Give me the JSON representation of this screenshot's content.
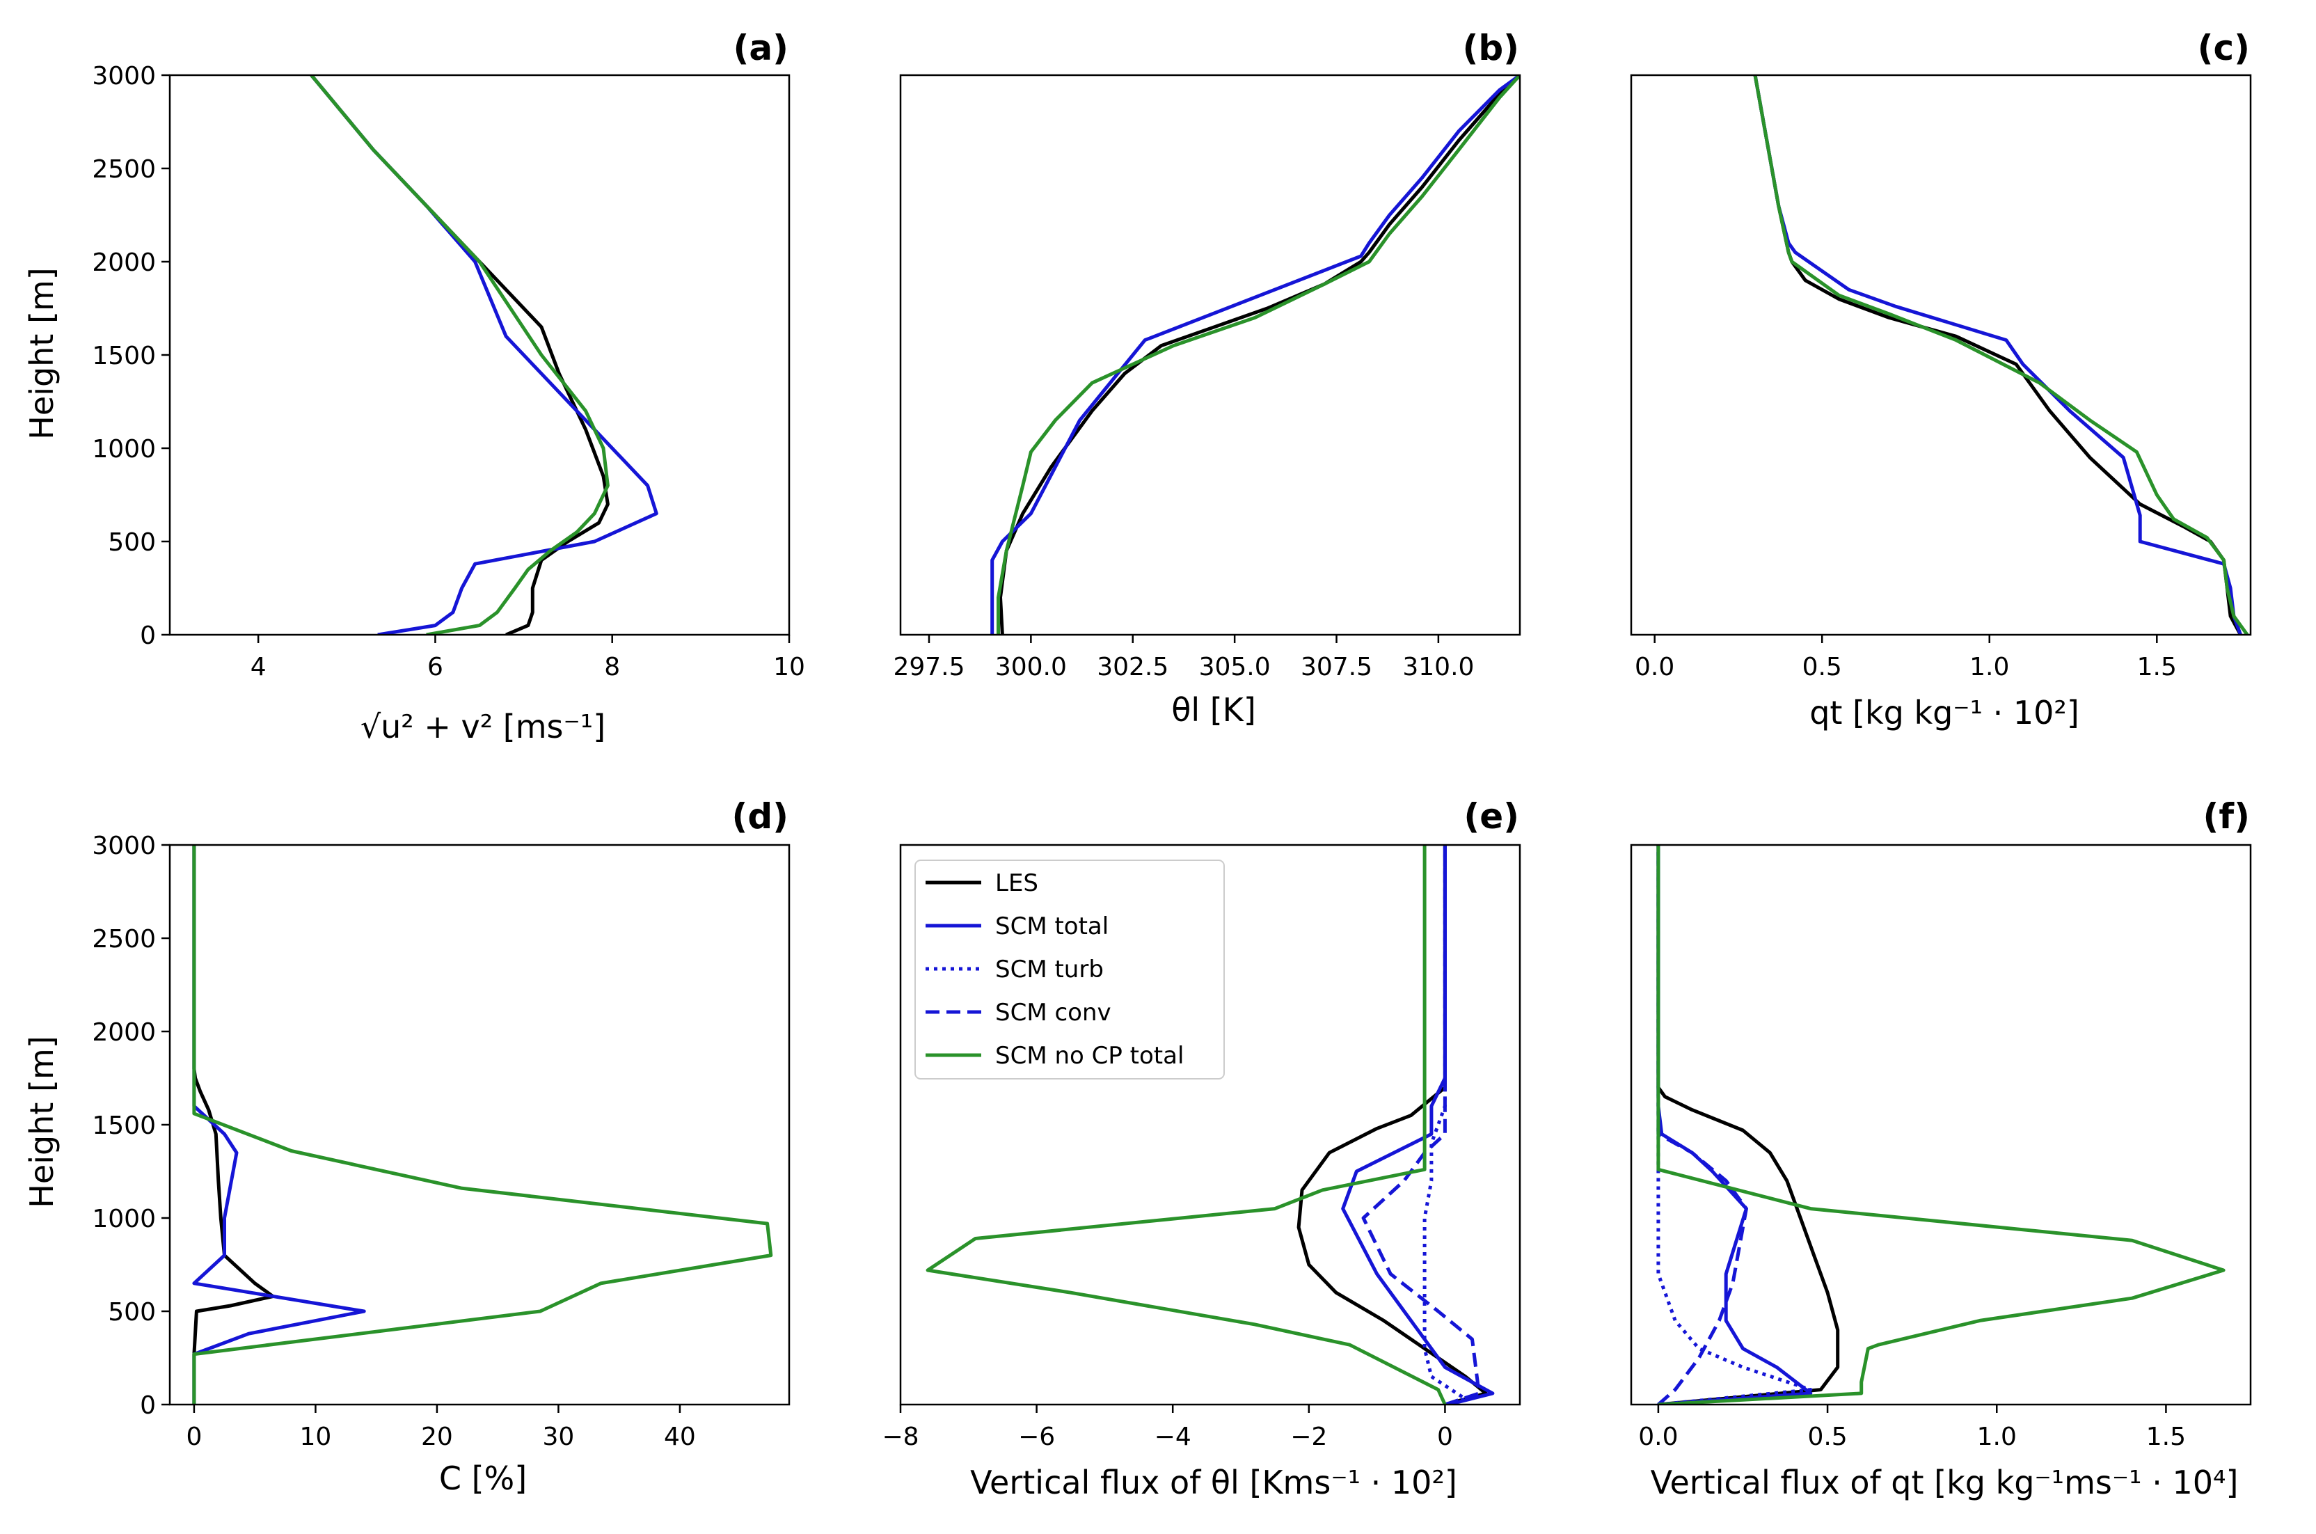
{
  "colors": {
    "LES": "#000000",
    "SCM total": "#1515d6",
    "SCM turb": "#1515d6",
    "SCM conv": "#1515d6",
    "SCM no CP total": "#2a922a"
  },
  "legend": [
    {
      "label": "LES",
      "dash": "solid"
    },
    {
      "label": "SCM total",
      "dash": "solid"
    },
    {
      "label": "SCM turb",
      "dash": "dotted"
    },
    {
      "label": "SCM conv",
      "dash": "dashed"
    },
    {
      "label": "SCM no CP total",
      "dash": "solid"
    }
  ],
  "chart_data": [
    {
      "type": "line",
      "panel": "(a)",
      "xlabel": "√u² + v² [ms⁻¹]",
      "ylabel": "Height [m]",
      "xlim": [
        3,
        10
      ],
      "ylim": [
        0,
        3000
      ],
      "xticks": [
        4,
        6,
        8,
        10
      ],
      "xtick_labels": [
        "4",
        "6",
        "8",
        "10"
      ],
      "yticks": [
        0,
        500,
        1000,
        1500,
        2000,
        2500,
        3000
      ],
      "ytick_labels": [
        "0",
        "500",
        "1000",
        "1500",
        "2000",
        "2500",
        "3000"
      ],
      "series": [
        {
          "name": "LES",
          "x": [
            6.8,
            7.05,
            7.1,
            7.1,
            7.2,
            7.5,
            7.85,
            7.95,
            7.9,
            7.7,
            7.4,
            7.2,
            6.9,
            6.5,
            5.9,
            5.3,
            4.6
          ],
          "y": [
            0,
            50,
            120,
            250,
            400,
            500,
            600,
            700,
            850,
            1100,
            1400,
            1650,
            1800,
            2000,
            2300,
            2600,
            3000
          ]
        },
        {
          "name": "SCM total",
          "x": [
            5.35,
            6.0,
            6.2,
            6.3,
            6.45,
            7.8,
            8.5,
            8.4,
            8.0,
            7.7,
            7.2,
            6.8,
            6.45,
            5.9,
            5.3,
            4.6
          ],
          "y": [
            0,
            50,
            120,
            250,
            380,
            500,
            650,
            800,
            1000,
            1150,
            1400,
            1600,
            2000,
            2300,
            2600,
            3000
          ]
        },
        {
          "name": "SCM no CP total",
          "x": [
            5.9,
            6.5,
            6.7,
            6.9,
            7.05,
            7.3,
            7.6,
            7.8,
            7.95,
            7.9,
            7.7,
            7.2,
            6.5,
            5.9,
            5.3,
            4.6
          ],
          "y": [
            0,
            50,
            120,
            250,
            350,
            450,
            550,
            650,
            800,
            1000,
            1200,
            1500,
            2000,
            2300,
            2600,
            3000
          ]
        }
      ]
    },
    {
      "type": "line",
      "panel": "(b)",
      "xlabel": "θl [K]",
      "xlim": [
        296.8,
        312.0
      ],
      "ylim": [
        0,
        3000
      ],
      "xticks": [
        297.5,
        300.0,
        302.5,
        305.0,
        307.5,
        310.0
      ],
      "xtick_labels": [
        "297.5",
        "300.0",
        "302.5",
        "305.0",
        "307.5",
        "310.0"
      ],
      "series": [
        {
          "name": "LES",
          "x": [
            299.3,
            299.25,
            299.4,
            299.8,
            300.5,
            301.5,
            302.3,
            303.2,
            304.5,
            305.8,
            307.2,
            308.1,
            308.3,
            308.8,
            309.6,
            310.5,
            311.5,
            312.0
          ],
          "y": [
            0,
            200,
            450,
            650,
            900,
            1200,
            1400,
            1550,
            1650,
            1750,
            1880,
            2000,
            2050,
            2200,
            2400,
            2650,
            2900,
            3000
          ]
        },
        {
          "name": "SCM total",
          "x": [
            299.05,
            299.05,
            299.3,
            300.0,
            300.6,
            301.2,
            302.8,
            308.1,
            308.3,
            308.8,
            309.6,
            310.5,
            311.5,
            312.0
          ],
          "y": [
            0,
            400,
            500,
            650,
            900,
            1150,
            1580,
            2030,
            2100,
            2250,
            2450,
            2700,
            2920,
            3000
          ]
        },
        {
          "name": "SCM no CP total",
          "x": [
            299.2,
            299.2,
            299.4,
            299.8,
            300.0,
            300.6,
            301.5,
            302.5,
            303.5,
            305.5,
            307.2,
            308.3,
            308.8,
            309.6,
            310.5,
            311.5,
            312.0
          ],
          "y": [
            0,
            200,
            450,
            800,
            980,
            1150,
            1350,
            1450,
            1550,
            1700,
            1880,
            2000,
            2150,
            2350,
            2600,
            2880,
            3000
          ]
        }
      ]
    },
    {
      "type": "line",
      "panel": "(c)",
      "xlabel": "qt [kg kg⁻¹ · 10²]",
      "xlim": [
        -0.07,
        1.78
      ],
      "ylim": [
        0,
        3000
      ],
      "xticks": [
        0.0,
        0.5,
        1.0,
        1.5
      ],
      "xtick_labels": [
        "0.0",
        "0.5",
        "1.0",
        "1.5"
      ],
      "series": [
        {
          "name": "LES",
          "x": [
            1.75,
            1.72,
            1.71,
            1.7,
            1.66,
            1.58,
            1.45,
            1.3,
            1.18,
            1.08,
            0.9,
            0.7,
            0.55,
            0.45,
            0.41,
            0.4,
            0.37,
            0.33,
            0.3
          ],
          "y": [
            0,
            100,
            250,
            400,
            500,
            580,
            700,
            950,
            1200,
            1450,
            1600,
            1700,
            1800,
            1900,
            2000,
            2050,
            2300,
            2700,
            3000
          ]
        },
        {
          "name": "SCM total",
          "x": [
            1.75,
            1.73,
            1.72,
            1.7,
            1.45,
            1.45,
            1.4,
            1.24,
            1.1,
            1.05,
            0.72,
            0.58,
            0.42,
            0.4,
            0.37,
            0.33,
            0.3
          ],
          "y": [
            0,
            100,
            250,
            380,
            500,
            640,
            950,
            1200,
            1450,
            1580,
            1760,
            1850,
            2050,
            2100,
            2300,
            2700,
            3000
          ]
        },
        {
          "name": "SCM no CP total",
          "x": [
            1.77,
            1.73,
            1.71,
            1.7,
            1.65,
            1.55,
            1.5,
            1.44,
            1.3,
            1.15,
            0.9,
            0.7,
            0.55,
            0.41,
            0.4,
            0.37,
            0.33,
            0.3
          ],
          "y": [
            0,
            100,
            250,
            400,
            520,
            620,
            750,
            980,
            1150,
            1350,
            1580,
            1720,
            1820,
            2000,
            2050,
            2300,
            2700,
            3000
          ]
        }
      ]
    },
    {
      "type": "line",
      "panel": "(d)",
      "xlabel": "C [%]",
      "ylabel": "Height [m]",
      "xlim": [
        -2,
        49
      ],
      "ylim": [
        0,
        3000
      ],
      "xticks": [
        0,
        10,
        20,
        30,
        40
      ],
      "xtick_labels": [
        "0",
        "10",
        "20",
        "30",
        "40"
      ],
      "yticks": [
        0,
        500,
        1000,
        1500,
        2000,
        2500,
        3000
      ],
      "ytick_labels": [
        "0",
        "500",
        "1000",
        "1500",
        "2000",
        "2500",
        "3000"
      ],
      "series": [
        {
          "name": "LES",
          "x": [
            0,
            0,
            0.2,
            3,
            6.5,
            5,
            2.5,
            2.2,
            2.0,
            1.8,
            1.2,
            0.5,
            0.1,
            0,
            0
          ],
          "y": [
            0,
            270,
            500,
            530,
            580,
            650,
            800,
            1000,
            1200,
            1450,
            1580,
            1680,
            1750,
            1800,
            3000
          ]
        },
        {
          "name": "SCM total",
          "x": [
            0,
            0,
            4.5,
            14,
            0,
            2.5,
            2.5,
            3.5,
            2.5,
            0,
            0,
            0
          ],
          "y": [
            0,
            270,
            380,
            500,
            650,
            800,
            1000,
            1350,
            1450,
            1600,
            1700,
            3000
          ]
        },
        {
          "name": "SCM no CP total",
          "x": [
            0,
            0,
            28.5,
            33.5,
            47.5,
            47.2,
            22,
            8,
            0,
            0
          ],
          "y": [
            0,
            270,
            500,
            650,
            800,
            970,
            1160,
            1360,
            1560,
            3000
          ]
        }
      ]
    },
    {
      "type": "line",
      "panel": "(e)",
      "xlabel": "Vertical flux of θl [Kms⁻¹ · 10²]",
      "xlim": [
        -8.0,
        1.1
      ],
      "ylim": [
        0,
        3000
      ],
      "xticks": [
        -8,
        -6,
        -4,
        -2,
        0
      ],
      "xtick_labels": [
        "−8",
        "−6",
        "−4",
        "−2",
        "0"
      ],
      "series": [
        {
          "name": "LES",
          "x": [
            0.0,
            0.6,
            0.3,
            -0.3,
            -0.9,
            -1.6,
            -2.0,
            -2.15,
            -2.1,
            -1.7,
            -1.0,
            -0.5,
            0.0,
            0.0
          ],
          "y": [
            0,
            60,
            150,
            300,
            450,
            600,
            750,
            950,
            1150,
            1350,
            1480,
            1550,
            1700,
            3000
          ]
        },
        {
          "name": "SCM total",
          "x": [
            0.05,
            0.7,
            0.0,
            -0.3,
            -0.6,
            -1.0,
            -1.5,
            -1.3,
            -0.2,
            -0.2,
            0.0,
            0.0,
            0.0,
            0.0
          ],
          "y": [
            0,
            60,
            200,
            350,
            500,
            700,
            1050,
            1250,
            1450,
            1600,
            1750,
            2000,
            2500,
            3000
          ]
        },
        {
          "name": "SCM turb",
          "x": [
            0.0,
            0.3,
            -0.2,
            -0.3,
            -0.3,
            -0.3,
            -0.3,
            -0.2,
            -0.2,
            0.0,
            0.0
          ],
          "y": [
            0,
            30,
            150,
            300,
            500,
            750,
            1000,
            1200,
            1400,
            1600,
            3000
          ]
        },
        {
          "name": "SCM conv",
          "x": [
            0.0,
            0.5,
            0.4,
            -0.1,
            -0.8,
            -1.2,
            -0.6,
            -0.3,
            0.0,
            0.0,
            0.0,
            0.0
          ],
          "y": [
            0,
            60,
            350,
            500,
            700,
            1000,
            1200,
            1350,
            1450,
            2000,
            2500,
            3000
          ]
        },
        {
          "name": "SCM no CP total",
          "x": [
            0.0,
            -0.1,
            -1.4,
            -2.8,
            -5.5,
            -7.6,
            -6.9,
            -2.5,
            -1.8,
            -0.3,
            -0.3,
            -0.3
          ],
          "y": [
            0,
            80,
            320,
            430,
            600,
            720,
            890,
            1050,
            1150,
            1260,
            2000,
            3000
          ]
        }
      ]
    },
    {
      "type": "line",
      "panel": "(f)",
      "xlabel": "Vertical flux of qt [kg kg⁻¹ms⁻¹ · 10⁴]",
      "xlim": [
        -0.08,
        1.75
      ],
      "ylim": [
        0,
        3000
      ],
      "xticks": [
        0.0,
        0.5,
        1.0,
        1.5
      ],
      "xtick_labels": [
        "0.0",
        "0.5",
        "1.0",
        "1.5"
      ],
      "series": [
        {
          "name": "LES",
          "x": [
            0.0,
            0.48,
            0.53,
            0.53,
            0.5,
            0.46,
            0.42,
            0.38,
            0.33,
            0.25,
            0.1,
            0.02,
            0.0,
            0.0
          ],
          "y": [
            0,
            80,
            200,
            400,
            600,
            800,
            1000,
            1200,
            1350,
            1470,
            1580,
            1650,
            1700,
            3000
          ]
        },
        {
          "name": "SCM total",
          "x": [
            0.0,
            0.45,
            0.35,
            0.25,
            0.2,
            0.2,
            0.26,
            0.16,
            0.1,
            0.01,
            0.0,
            0.0
          ],
          "y": [
            0,
            60,
            200,
            300,
            450,
            700,
            1050,
            1250,
            1350,
            1450,
            1600,
            3000
          ]
        },
        {
          "name": "SCM turb",
          "x": [
            0.0,
            0.45,
            0.25,
            0.12,
            0.05,
            0.0,
            0.0,
            0.0,
            0.0
          ],
          "y": [
            0,
            80,
            200,
            300,
            450,
            700,
            1000,
            1300,
            3000
          ]
        },
        {
          "name": "SCM conv",
          "x": [
            0.0,
            0.05,
            0.12,
            0.18,
            0.22,
            0.26,
            0.2,
            0.1,
            0.0,
            0.0
          ],
          "y": [
            0,
            80,
            250,
            450,
            650,
            1050,
            1200,
            1350,
            1450,
            3000
          ]
        },
        {
          "name": "SCM no CP total",
          "x": [
            0.0,
            0.6,
            0.6,
            0.62,
            0.65,
            0.95,
            1.4,
            1.67,
            1.4,
            0.45,
            0.0,
            0.0
          ],
          "y": [
            0,
            60,
            120,
            300,
            320,
            450,
            570,
            720,
            880,
            1050,
            1260,
            3000
          ]
        }
      ]
    }
  ]
}
